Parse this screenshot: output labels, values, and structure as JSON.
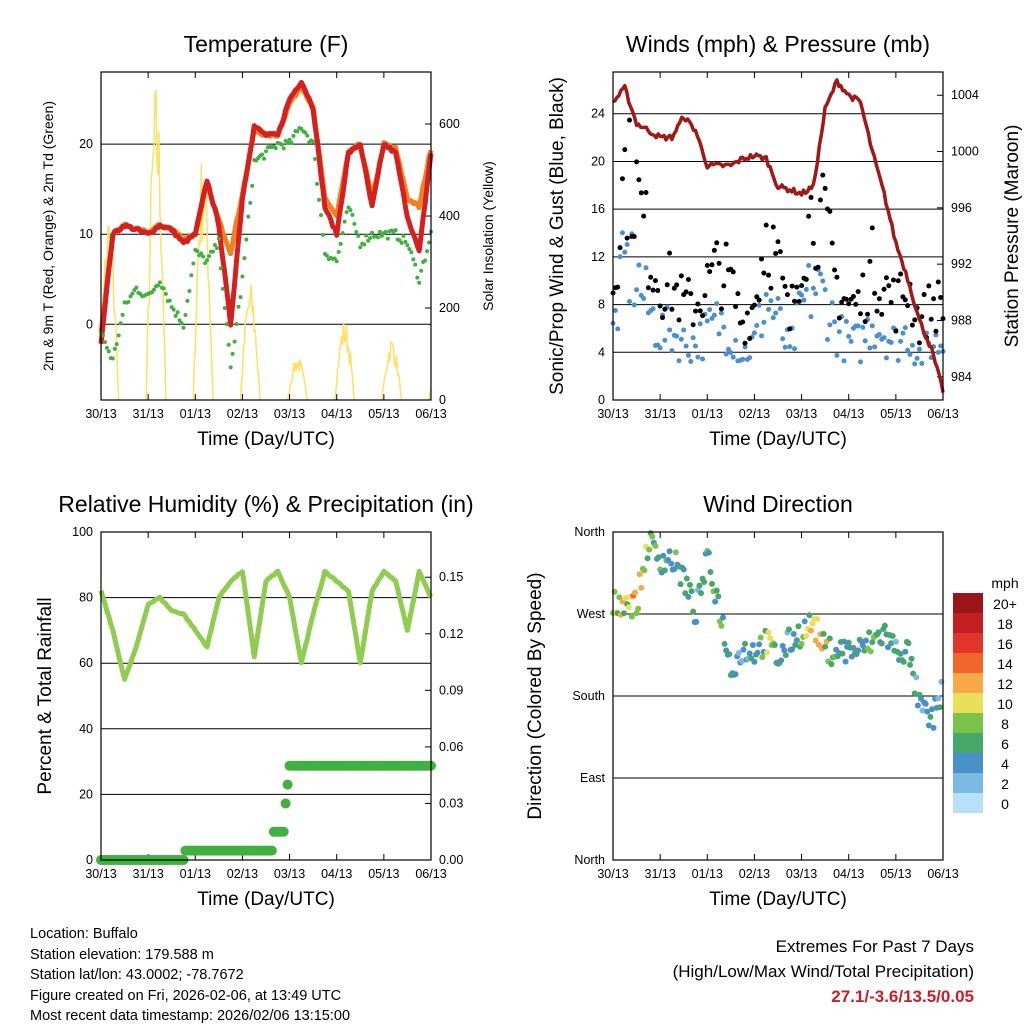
{
  "x_ticks": [
    "30/13",
    "31/13",
    "01/13",
    "02/13",
    "03/13",
    "04/13",
    "05/13",
    "06/13"
  ],
  "xlabel": "Time (Day/UTC)",
  "hours": [
    0,
    6,
    12,
    18,
    24,
    30,
    36,
    42,
    48,
    54,
    60,
    66,
    72,
    78,
    84,
    90,
    96,
    102,
    108,
    114,
    120,
    126,
    132,
    138,
    144,
    150,
    156,
    162,
    168
  ],
  "chart_data": [
    {
      "type": "line",
      "title": "Temperature (F)",
      "ylabel": "2m & 9m T (Red, Orange) & 2m Td (Green)",
      "ylabel_right": "Solar Insolation (Yellow)",
      "ylim": [
        -8.4,
        28
      ],
      "yticks": [
        0,
        10,
        20
      ],
      "ylim_right": [
        0,
        713
      ],
      "yticks_right": [
        0,
        200,
        400,
        600
      ],
      "series": [
        {
          "name": "2m T",
          "color": "#d42020",
          "values": [
            -2,
            10,
            11,
            10.5,
            10,
            11,
            10.5,
            9,
            10,
            16,
            11,
            0,
            14,
            22,
            21,
            21,
            25,
            27,
            24,
            13,
            10,
            19,
            20,
            13,
            20,
            19,
            12,
            8,
            19
          ]
        },
        {
          "name": "9m T",
          "color": "#f08020",
          "values": [
            -1,
            10,
            11,
            10.5,
            10.2,
            11,
            10.6,
            9.5,
            10,
            15.5,
            11.5,
            8,
            14.5,
            21.5,
            21,
            21,
            24.5,
            26.5,
            24,
            14,
            12,
            19,
            20,
            14,
            20,
            19.5,
            14,
            13,
            19.5
          ]
        },
        {
          "name": "2m Td",
          "color": "#40b040",
          "values": [
            -1,
            -4,
            2,
            4,
            3,
            5,
            2,
            0,
            8,
            7,
            9,
            -5,
            5,
            18,
            19,
            20,
            20,
            22,
            20,
            8,
            7,
            13,
            9,
            10,
            10,
            10,
            9,
            5,
            10
          ]
        },
        {
          "name": "Solar Insolation",
          "color": "#ffe060",
          "axis": "right",
          "daily_peaks": [
            420,
            700,
            560,
            260,
            100,
            180,
            140,
            100
          ]
        }
      ]
    },
    {
      "type": "scatter",
      "title": "Winds (mph) & Pressure (mb)",
      "ylabel": "Sonic/Prop Wind & Gust (Blue, Black)",
      "ylabel_right": "Station Pressure (Maroon)",
      "ylim": [
        0,
        27.5
      ],
      "yticks": [
        0,
        4,
        8,
        12,
        16,
        20,
        24
      ],
      "ylim_right": [
        982.35,
        1005.65
      ],
      "yticks_right": [
        984,
        988,
        992,
        996,
        1000,
        1004
      ],
      "series": [
        {
          "name": "Wind",
          "color": "#4a90d0",
          "values": [
            6,
            12,
            11,
            8,
            6,
            6,
            5,
            5,
            6,
            7,
            6,
            4,
            5,
            9,
            7,
            4,
            8,
            10,
            9,
            6,
            5,
            5,
            7,
            6,
            5,
            6,
            4,
            5,
            5
          ]
        },
        {
          "name": "Gust",
          "color": "#000000",
          "gust_factor": 1.6
        },
        {
          "name": "Pressure",
          "color": "#a01818",
          "values": [
            1003.5,
            1004.5,
            1002,
            1001.5,
            1001,
            1001,
            1002.5,
            1001.5,
            999,
            999,
            999,
            999.5,
            999.7,
            999.5,
            997.5,
            997.3,
            997,
            997.5,
            1003,
            1005,
            1004,
            1003.5,
            1000,
            997,
            993.5,
            991,
            988,
            986,
            983
          ]
        }
      ]
    },
    {
      "type": "line",
      "title": "Relative Humidity (%) & Precipitation (in)",
      "ylabel": "Percent & Total Rainfall",
      "ylim": [
        0,
        100
      ],
      "yticks": [
        0,
        20,
        40,
        60,
        80,
        100
      ],
      "ylim_right": [
        0,
        0.174
      ],
      "yticks_right": [
        "0.00",
        "0.03",
        "0.06",
        "0.09",
        "0.12",
        "0.15"
      ],
      "series": [
        {
          "name": "RH",
          "color": "#90cc50",
          "values": [
            82,
            70,
            55,
            65,
            78,
            80,
            76,
            75,
            70,
            65,
            80,
            85,
            88,
            62,
            85,
            88,
            80,
            60,
            75,
            88,
            85,
            82,
            60,
            82,
            88,
            85,
            70,
            88,
            80
          ]
        },
        {
          "name": "Precipitation",
          "color": "#40b040",
          "points": [
            [
              0,
              0
            ],
            [
              42,
              0
            ],
            [
              43,
              0.005
            ],
            [
              87,
              0.005
            ],
            [
              88,
              0.015
            ],
            [
              93,
              0.015
            ],
            [
              94,
              0.03
            ],
            [
              96,
              0.05
            ],
            [
              168,
              0.05
            ]
          ]
        }
      ]
    },
    {
      "type": "scatter",
      "title": "Wind Direction",
      "ylabel": "Direction (Colored By Speed)",
      "ylim": [
        0,
        360
      ],
      "yticks": [
        "North",
        "East",
        "South",
        "West",
        "North"
      ],
      "series": [
        {
          "name": "Direction",
          "values": [
            280,
            285,
            280,
            350,
            330,
            330,
            310,
            270,
            330,
            280,
            210,
            230,
            230,
            240,
            220,
            240,
            250,
            260,
            230,
            230,
            230,
            230,
            240,
            250,
            230,
            230,
            170,
            150,
            190
          ]
        }
      ],
      "legend": {
        "title": "mph",
        "labels": [
          "20+",
          "18",
          "16",
          "14",
          "12",
          "10",
          "8",
          "6",
          "4",
          "2",
          "0"
        ],
        "colors": [
          "#9b1518",
          "#c41e24",
          "#e0352a",
          "#f0652a",
          "#f7a847",
          "#e8e05a",
          "#7bc24a",
          "#45a86a",
          "#4a90c8",
          "#7cb8e4",
          "#b8e0f8"
        ]
      }
    }
  ],
  "info": {
    "location": "Location: Buffalo",
    "elevation": "Station elevation: 179.588 m",
    "latlon": "Station lat/lon: 43.0002; -78.7672",
    "created": "Figure created on Fri, 2026-02-06, at 13:49 UTC",
    "recent": "Most recent data timestamp: 2026/02/06 13:15:00"
  },
  "extremes": {
    "title": "Extremes For Past 7 Days",
    "subtitle": "(High/Low/Max Wind/Total Precipitation)",
    "values": "27.1/-3.6/13.5/0.05"
  }
}
